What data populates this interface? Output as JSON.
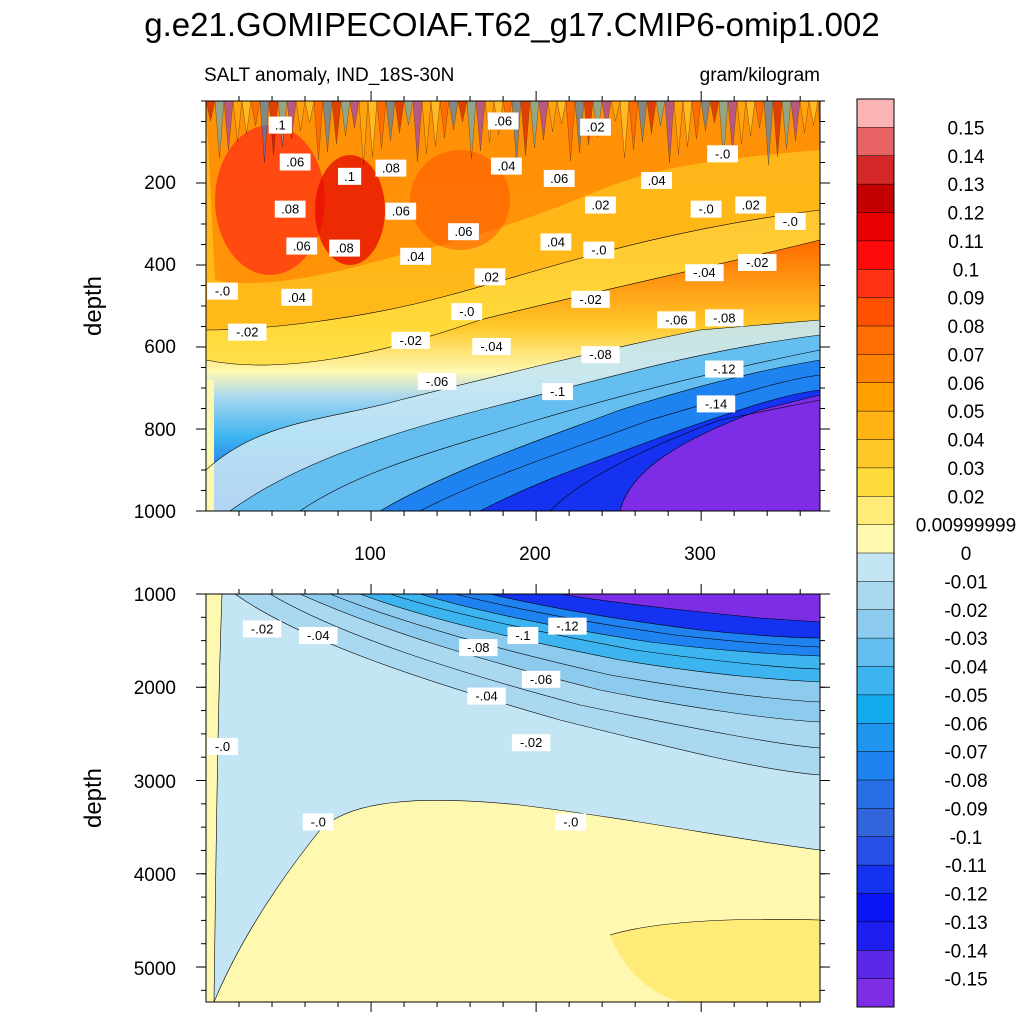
{
  "chart_data": {
    "type": "contour",
    "title": "g.e21.GOMIPECOIAF.T62_g17.CMIP6-omip1.002",
    "left_string": "SALT anomaly, IND_18S-30N",
    "right_string": "gram/kilogram",
    "xaxis": {
      "range": [
        0,
        372
      ],
      "ticks": [
        100,
        200,
        300
      ],
      "tick_labels": [
        "100",
        "200",
        "300"
      ]
    },
    "panels": [
      {
        "name": "upper",
        "ylabel": "depth",
        "ylim": [
          0,
          1000
        ],
        "ticks": [
          200,
          400,
          600,
          800,
          1000
        ],
        "tick_labels": [
          "200",
          "400",
          "600",
          "800",
          "1000"
        ],
        "contour_labels": [
          {
            "text": ".1",
            "x": 45,
            "y": 60
          },
          {
            "text": ".06",
            "x": 54,
            "y": 150
          },
          {
            "text": ".1",
            "x": 87,
            "y": 185
          },
          {
            "text": ".08",
            "x": 112,
            "y": 165
          },
          {
            "text": ".06",
            "x": 180,
            "y": 50
          },
          {
            "text": ".04",
            "x": 182,
            "y": 160
          },
          {
            "text": ".02",
            "x": 236,
            "y": 65
          },
          {
            "text": ".06",
            "x": 214,
            "y": 190
          },
          {
            "text": ".04",
            "x": 273,
            "y": 195
          },
          {
            "text": "-.0",
            "x": 313,
            "y": 130
          },
          {
            "text": ".08",
            "x": 51,
            "y": 265
          },
          {
            "text": ".06",
            "x": 118,
            "y": 270
          },
          {
            "text": ".02",
            "x": 239,
            "y": 255
          },
          {
            "text": "-.0",
            "x": 303,
            "y": 265
          },
          {
            "text": ".02",
            "x": 330,
            "y": 255
          },
          {
            "text": "-.0",
            "x": 354,
            "y": 295
          },
          {
            "text": ".06",
            "x": 58,
            "y": 355
          },
          {
            "text": ".08",
            "x": 84,
            "y": 360
          },
          {
            "text": ".04",
            "x": 127,
            "y": 380
          },
          {
            "text": ".06",
            "x": 156,
            "y": 320
          },
          {
            "text": ".04",
            "x": 212,
            "y": 345
          },
          {
            "text": "-.0",
            "x": 238,
            "y": 365
          },
          {
            "text": "-.04",
            "x": 302,
            "y": 420
          },
          {
            "text": "-.02",
            "x": 334,
            "y": 395
          },
          {
            "text": "-.0",
            "x": 10,
            "y": 465
          },
          {
            "text": ".04",
            "x": 55,
            "y": 480
          },
          {
            "text": ".02",
            "x": 172,
            "y": 430
          },
          {
            "text": "-.02",
            "x": 233,
            "y": 485
          },
          {
            "text": "-.0",
            "x": 158,
            "y": 515
          },
          {
            "text": "-.02",
            "x": 25,
            "y": 565
          },
          {
            "text": "-.02",
            "x": 124,
            "y": 585
          },
          {
            "text": "-.04",
            "x": 173,
            "y": 600
          },
          {
            "text": "-.06",
            "x": 285,
            "y": 535
          },
          {
            "text": "-.08",
            "x": 314,
            "y": 530
          },
          {
            "text": "-.08",
            "x": 239,
            "y": 620
          },
          {
            "text": "-.06",
            "x": 140,
            "y": 685
          },
          {
            "text": "-.12",
            "x": 314,
            "y": 655
          },
          {
            "text": "-.1",
            "x": 213,
            "y": 710
          },
          {
            "text": "-.14",
            "x": 309,
            "y": 740
          }
        ]
      },
      {
        "name": "lower",
        "ylabel": "depth",
        "ylim": [
          1000,
          5375
        ],
        "ticks": [
          1000,
          2000,
          3000,
          4000,
          5000
        ],
        "tick_labels": [
          "1000",
          "2000",
          "3000",
          "4000",
          "5000"
        ],
        "contour_labels": [
          {
            "text": "-.02",
            "x": 34,
            "y": 1380
          },
          {
            "text": "-.04",
            "x": 68,
            "y": 1450
          },
          {
            "text": "-.08",
            "x": 165,
            "y": 1580
          },
          {
            "text": "-.1",
            "x": 192,
            "y": 1450
          },
          {
            "text": "-.12",
            "x": 219,
            "y": 1350
          },
          {
            "text": "-.06",
            "x": 203,
            "y": 1920
          },
          {
            "text": "-.04",
            "x": 170,
            "y": 2100
          },
          {
            "text": "-.02",
            "x": 197,
            "y": 2600
          },
          {
            "text": "-.0",
            "x": 10,
            "y": 2640
          },
          {
            "text": "-.0",
            "x": 68,
            "y": 3450
          },
          {
            "text": "-.0",
            "x": 221,
            "y": 3450
          }
        ]
      }
    ],
    "colorbar": {
      "levels": [
        "0.15",
        "0.14",
        "0.13",
        "0.12",
        "0.11",
        "0.1",
        "0.09",
        "0.08",
        "0.07",
        "0.06",
        "0.05",
        "0.04",
        "0.03",
        "0.02",
        "0.00999999",
        "0",
        "-0.01",
        "-0.02",
        "-0.03",
        "-0.04",
        "-0.05",
        "-0.06",
        "-0.07",
        "-0.08",
        "-0.09",
        "-0.1",
        "-0.11",
        "-0.12",
        "-0.13",
        "-0.14",
        "-0.15"
      ],
      "colors": [
        "#fbb4b4",
        "#e86464",
        "#d42828",
        "#c40000",
        "#e60000",
        "#ff0a0a",
        "#ff3214",
        "#ff5000",
        "#ff6e00",
        "#ff8200",
        "#ffa000",
        "#ffb414",
        "#ffc828",
        "#ffdc3c",
        "#ffec78",
        "#fff8b0",
        "#c4e6f4",
        "#aad8f0",
        "#8ccbee",
        "#64bef0",
        "#3cb4f0",
        "#14aaf0",
        "#1e96f0",
        "#1e82f0",
        "#286ee6",
        "#3264dc",
        "#2850e6",
        "#1432f0",
        "#0a14f5",
        "#1e1ef0",
        "#5a28e6",
        "#7d2de6"
      ]
    },
    "field_colors": {
      "deep_purple": "#7d2de6",
      "pale_yellow": "#fff8b0",
      "pale_blue": "#c4e6f4"
    }
  }
}
